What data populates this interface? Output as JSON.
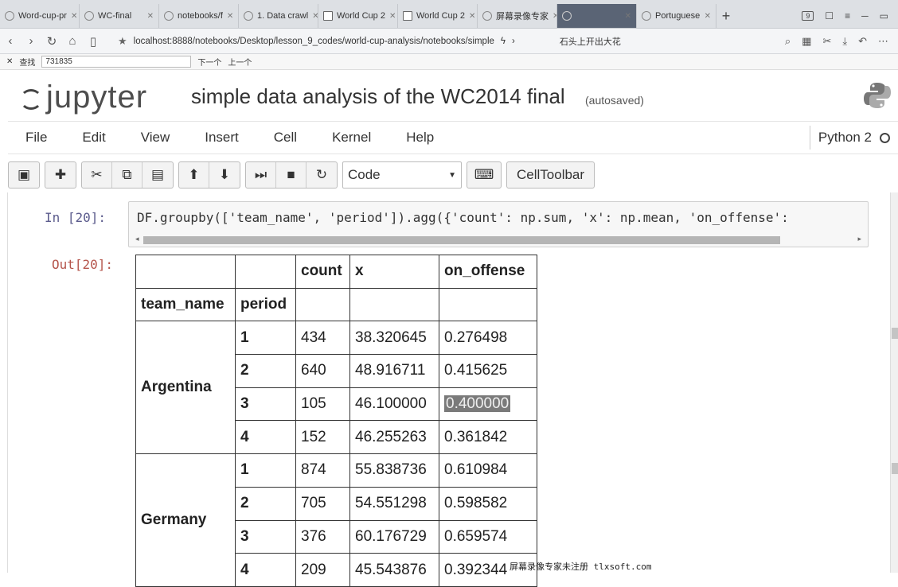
{
  "browser": {
    "tabs": [
      {
        "label": "Word-cup-pr"
      },
      {
        "label": "WC-final"
      },
      {
        "label": "notebooks/f"
      },
      {
        "label": "1. Data crawl"
      },
      {
        "label": "World Cup 2"
      },
      {
        "label": "World Cup 2"
      },
      {
        "label": "屏幕录像专家"
      },
      {
        "label": ""
      },
      {
        "label": "Portuguese"
      }
    ],
    "new_tab": "+",
    "tab_count": "9",
    "url": "localhost:8888/notebooks/Desktop/lesson_9_codes/world-cup-analysis/notebooks/simple",
    "bookmark": "石头上开出大花",
    "find_label": "查找",
    "find_value": "731835",
    "find_next": "下一个",
    "find_prev": "上一个"
  },
  "jupyter": {
    "logo_text": "jupyter",
    "notebook_title": "simple data analysis of the WC2014 final",
    "autosave_status": "(autosaved)",
    "menu": [
      "File",
      "Edit",
      "View",
      "Insert",
      "Cell",
      "Kernel",
      "Help"
    ],
    "kernel_name": "Python 2",
    "cell_type": "Code",
    "cell_toolbar_label": "CellToolbar"
  },
  "cell": {
    "in_prompt": "In  [20]:",
    "code": "DF.groupby(['team_name', 'period']).agg({'count': np.sum, 'x': np.mean, 'on_offense':",
    "out_prompt": "Out[20]:"
  },
  "output_table": {
    "columns": [
      "count",
      "x",
      "on_offense"
    ],
    "index_names": [
      "team_name",
      "period"
    ],
    "groups": [
      {
        "team": "Argentina",
        "rows": [
          {
            "period": "1",
            "count": "434",
            "x": "38.320645",
            "on_offense": "0.276498"
          },
          {
            "period": "2",
            "count": "640",
            "x": "48.916711",
            "on_offense": "0.415625"
          },
          {
            "period": "3",
            "count": "105",
            "x": "46.100000",
            "on_offense": "0.400000"
          },
          {
            "period": "4",
            "count": "152",
            "x": "46.255263",
            "on_offense": "0.361842"
          }
        ]
      },
      {
        "team": "Germany",
        "rows": [
          {
            "period": "1",
            "count": "874",
            "x": "55.838736",
            "on_offense": "0.610984"
          },
          {
            "period": "2",
            "count": "705",
            "x": "54.551298",
            "on_offense": "0.598582"
          },
          {
            "period": "3",
            "count": "376",
            "x": "60.176729",
            "on_offense": "0.659574"
          },
          {
            "period": "4",
            "count": "209",
            "x": "45.543876",
            "on_offense": "0.392344"
          }
        ]
      }
    ]
  },
  "watermark": "屏幕录像专家未注册 tlxsoft.com"
}
